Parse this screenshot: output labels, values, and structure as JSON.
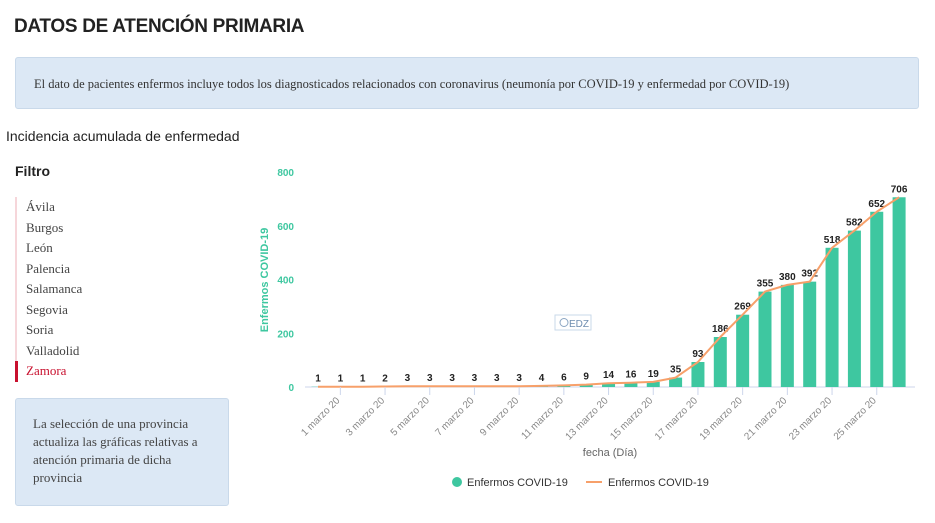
{
  "header": {
    "title": "DATOS DE ATENCIÓN PRIMARIA"
  },
  "notice": "El dato de pacientes enfermos incluye todos los diagnosticados relacionados con coronavirus (neumonía por COVID-19 y enfermedad por COVID-19)",
  "section_title": "Incidencia acumulada de enfermedad",
  "filter": {
    "title": "Filtro",
    "items": [
      "Ávila",
      "Burgos",
      "León",
      "Palencia",
      "Salamanca",
      "Segovia",
      "Soria",
      "Valladolid",
      "Zamora"
    ],
    "selected": "Zamora",
    "info": "La selección de una provincia actualiza las gráficas relativas a atención primaria de dicha provincia"
  },
  "chart_data": {
    "type": "bar",
    "xlabel": "fecha (Día)",
    "ylabel": "Enfermos COVID-19",
    "ylim": [
      0,
      800
    ],
    "yticks": [
      0,
      200,
      400,
      600,
      800
    ],
    "xtick_labels": [
      "1 marzo 20",
      "3 marzo 20",
      "5 marzo 20",
      "7 marzo 20",
      "9 marzo 20",
      "11 marzo 20",
      "13 marzo 20",
      "15 marzo 20",
      "17 marzo 20",
      "19 marzo 20",
      "21 marzo 20",
      "23 marzo 20",
      "25 marzo 20"
    ],
    "values": [
      1,
      1,
      1,
      2,
      3,
      3,
      3,
      3,
      3,
      3,
      4,
      6,
      9,
      14,
      16,
      19,
      35,
      93,
      186,
      269,
      355,
      380,
      392,
      518,
      582,
      652,
      706
    ],
    "series": [
      {
        "name": "Enfermos COVID-19",
        "kind": "bar",
        "color": "#3ec7a0"
      },
      {
        "name": "Enfermos COVID-19",
        "kind": "line",
        "color": "#f7a06a"
      }
    ],
    "legend": "bottom",
    "watermark": "EDZ"
  }
}
